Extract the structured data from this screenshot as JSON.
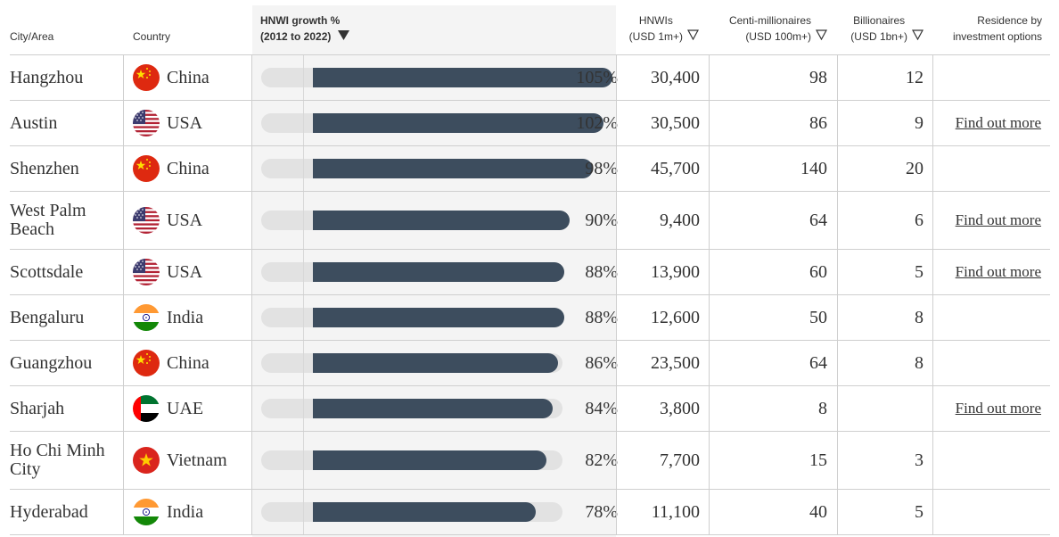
{
  "header": {
    "city": "City/Area",
    "country": "Country",
    "growth_line1": "HNWI growth %",
    "growth_line2": "(2012 to 2022)",
    "growth_sort_icon": "sort-down-filled-icon",
    "hnwis_line1": "HNWIs",
    "hnwis_line2": "(USD 1m+)",
    "centi_line1": "Centi-millionaires",
    "centi_line2": "(USD 100m+)",
    "bill_line1": "Billionaires",
    "bill_line2": "(USD 1bn+)",
    "res_line1": "Residence by",
    "res_line2": "investment options",
    "sort_icon": "sort-down-outline-icon"
  },
  "rows": [
    {
      "city": "Hangzhou",
      "flag": "china-flag-icon",
      "country": "China",
      "growth": 105,
      "growth_label": "105%",
      "hnwis": "30,400",
      "centi": "98",
      "bill": "12",
      "res": ""
    },
    {
      "city": "Austin",
      "flag": "usa-flag-icon",
      "country": "USA",
      "growth": 102,
      "growth_label": "102%",
      "hnwis": "30,500",
      "centi": "86",
      "bill": "9",
      "res": "Find out more"
    },
    {
      "city": "Shenzhen",
      "flag": "china-flag-icon",
      "country": "China",
      "growth": 98,
      "growth_label": "98%",
      "hnwis": "45,700",
      "centi": "140",
      "bill": "20",
      "res": ""
    },
    {
      "city": "West Palm Beach",
      "flag": "usa-flag-icon",
      "country": "USA",
      "growth": 90,
      "growth_label": "90%",
      "hnwis": "9,400",
      "centi": "64",
      "bill": "6",
      "res": "Find out more"
    },
    {
      "city": "Scottsdale",
      "flag": "usa-flag-icon",
      "country": "USA",
      "growth": 88,
      "growth_label": "88%",
      "hnwis": "13,900",
      "centi": "60",
      "bill": "5",
      "res": "Find out more"
    },
    {
      "city": "Bengaluru",
      "flag": "india-flag-icon",
      "country": "India",
      "growth": 88,
      "growth_label": "88%",
      "hnwis": "12,600",
      "centi": "50",
      "bill": "8",
      "res": ""
    },
    {
      "city": "Guangzhou",
      "flag": "china-flag-icon",
      "country": "China",
      "growth": 86,
      "growth_label": "86%",
      "hnwis": "23,500",
      "centi": "64",
      "bill": "8",
      "res": ""
    },
    {
      "city": "Sharjah",
      "flag": "uae-flag-icon",
      "country": "UAE",
      "growth": 84,
      "growth_label": "84%",
      "hnwis": "3,800",
      "centi": "8",
      "bill": "",
      "res": "Find out more"
    },
    {
      "city": "Ho Chi Minh City",
      "flag": "vietnam-flag-icon",
      "country": "Vietnam",
      "growth": 82,
      "growth_label": "82%",
      "hnwis": "7,700",
      "centi": "15",
      "bill": "3",
      "res": ""
    },
    {
      "city": "Hyderabad",
      "flag": "india-flag-icon",
      "country": "India",
      "growth": 78,
      "growth_label": "78%",
      "hnwis": "11,100",
      "centi": "40",
      "bill": "5",
      "res": ""
    }
  ],
  "colors": {
    "bar_fill": "#3d4d5e",
    "bar_track": "#e2e2e2",
    "sorted_column_bg": "#f4f4f4",
    "grid": "#cfcfcf"
  }
}
